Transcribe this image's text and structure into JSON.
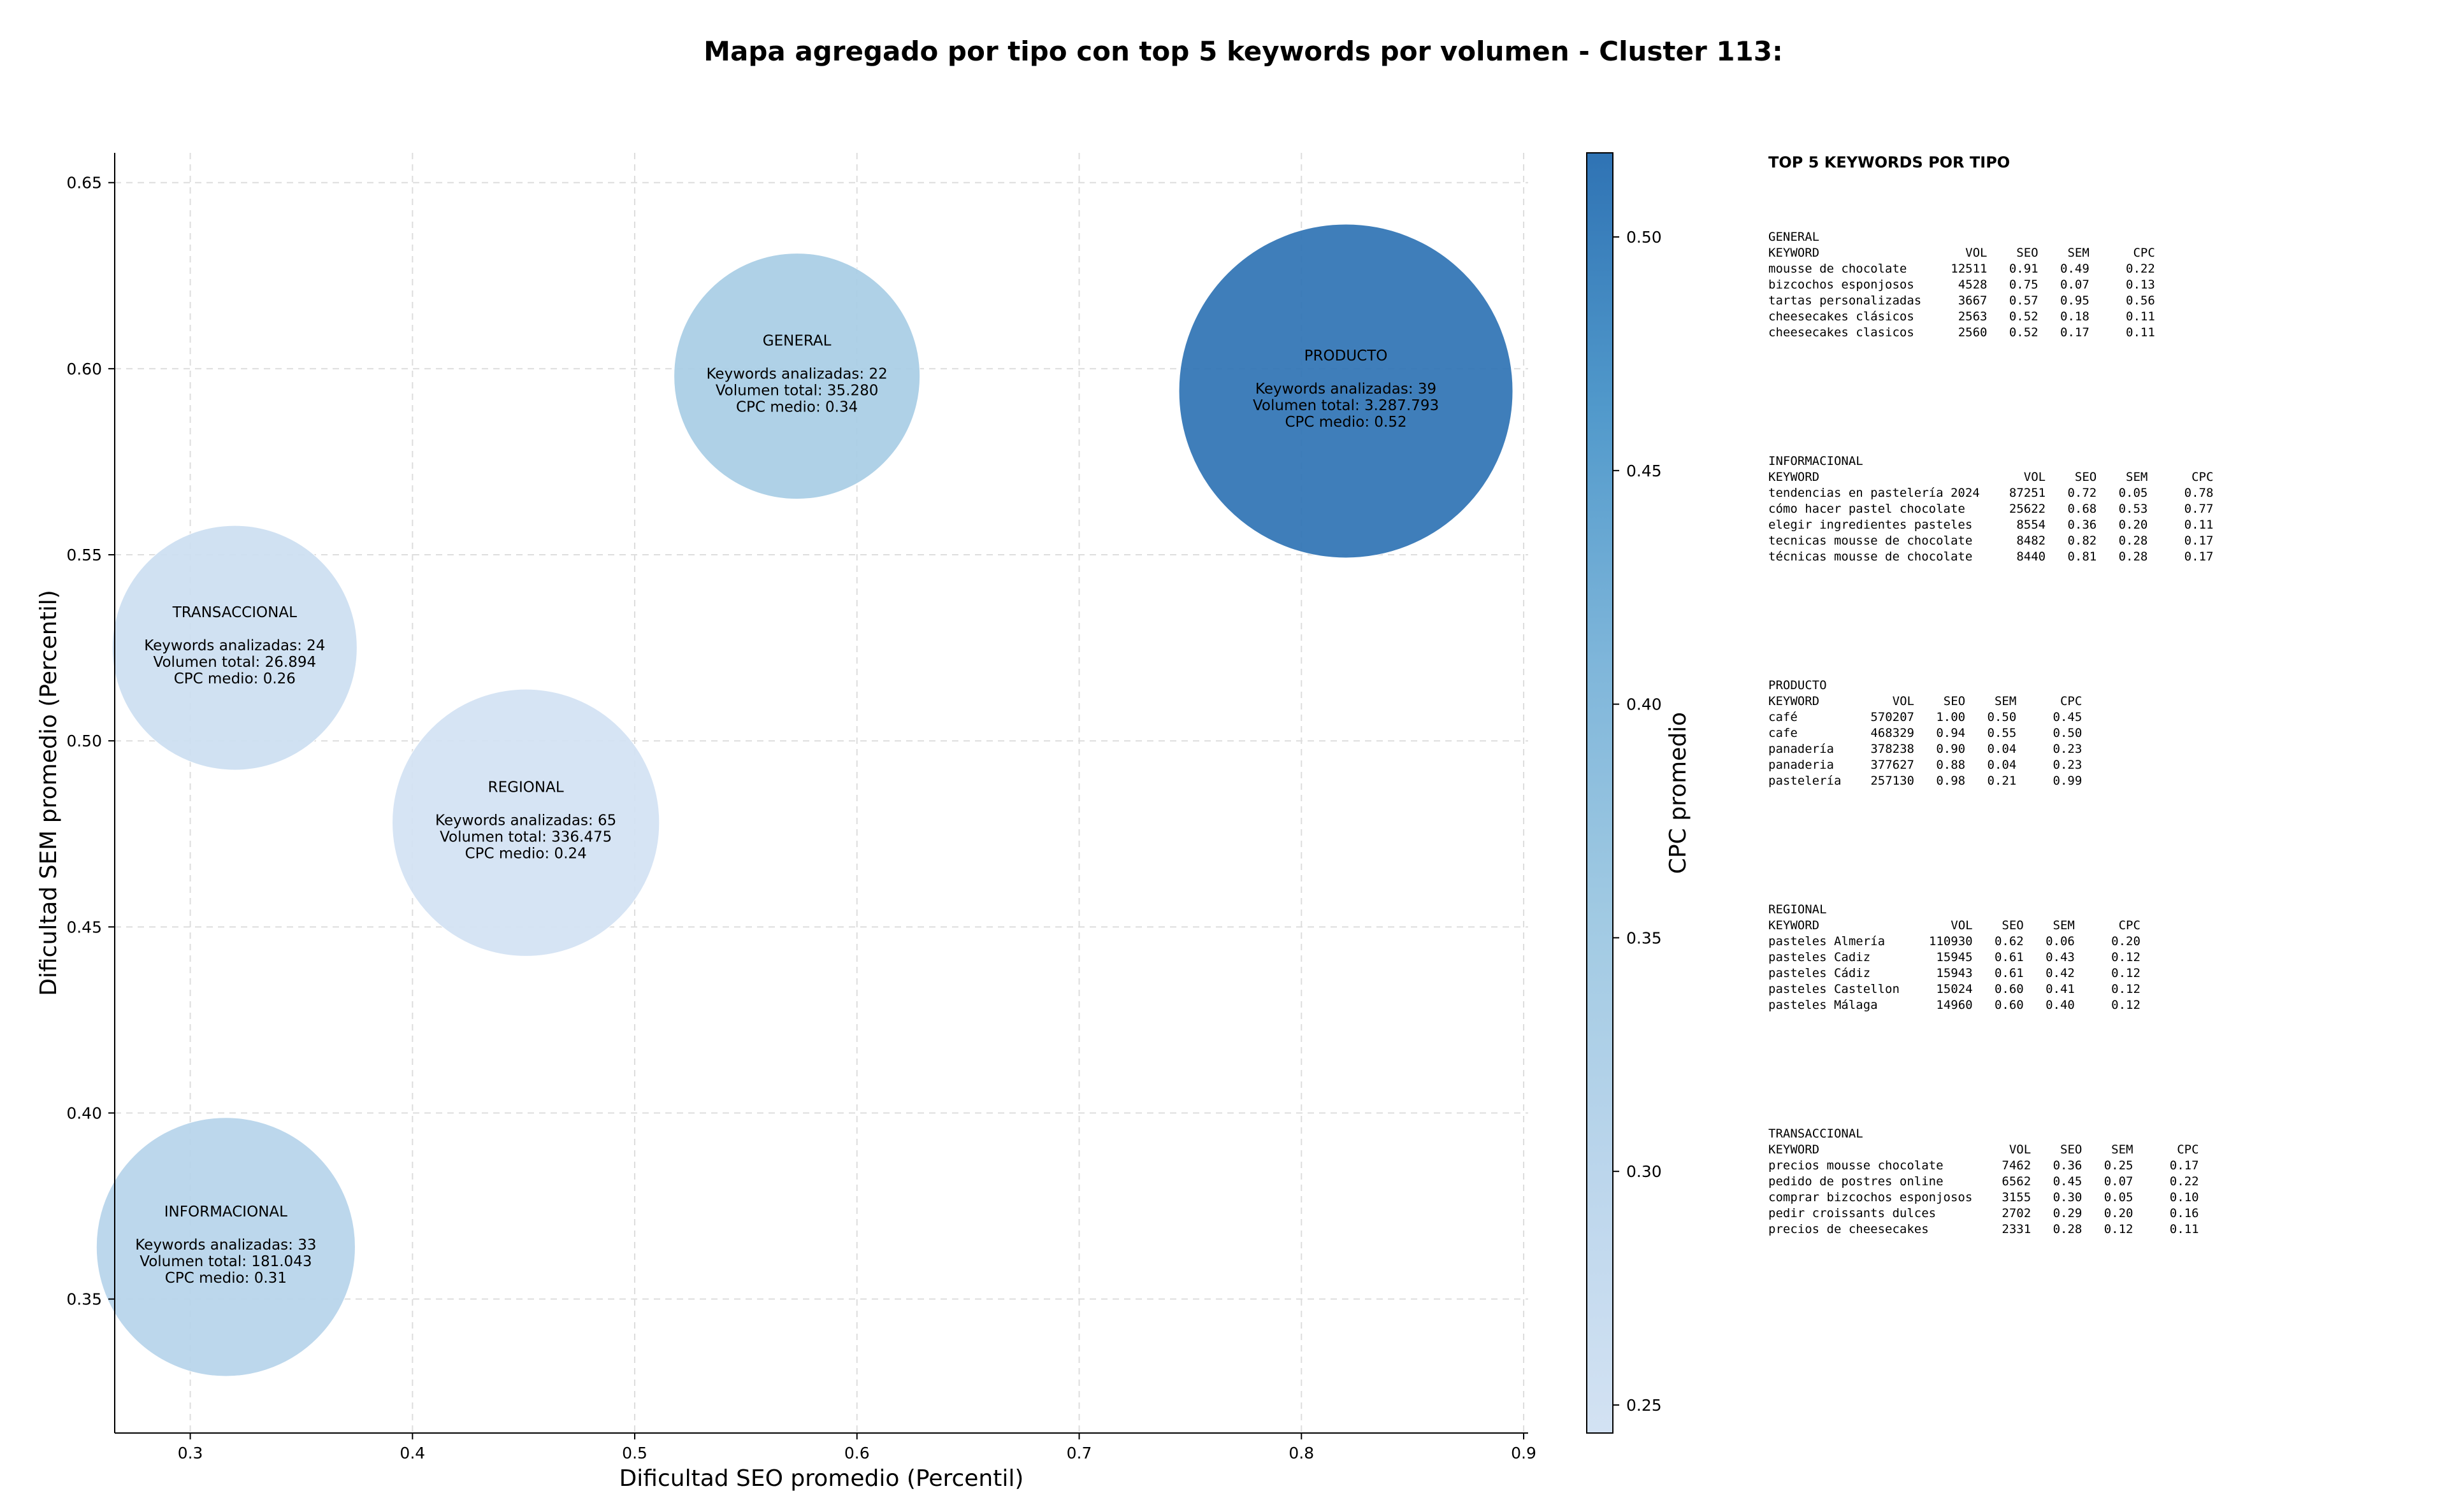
{
  "chart_data": {
    "type": "scatter",
    "title": "Mapa agregado por tipo con top 5 keywords por volumen - Cluster 113:",
    "xlabel": "Dificultad SEO promedio (Percentil)",
    "ylabel": "Dificultad SEM promedio (Percentil)",
    "xlim": [
      0.266,
      0.902
    ],
    "ylim": [
      0.314,
      0.658
    ],
    "xticks": [
      "0.3",
      "0.4",
      "0.5",
      "0.6",
      "0.7",
      "0.8",
      "0.9"
    ],
    "yticks": [
      "0.35",
      "0.40",
      "0.45",
      "0.50",
      "0.55",
      "0.60",
      "0.65"
    ],
    "grid": true,
    "colorbar": {
      "label": "CPC promedio",
      "range": [
        0.244,
        0.518
      ],
      "ticks": [
        "0.25",
        "0.30",
        "0.35",
        "0.40",
        "0.45",
        "0.50"
      ]
    },
    "points": [
      {
        "type_label": "GENERAL",
        "x": 0.573,
        "y": 0.598,
        "size_volume": 35280,
        "cpc": 0.34,
        "line1": "Keywords analizadas: 22",
        "line2": "Volumen total: 35.280",
        "line3": "CPC medio: 0.34"
      },
      {
        "type_label": "PRODUCTO",
        "x": 0.82,
        "y": 0.594,
        "size_volume": 3287793,
        "cpc": 0.52,
        "line1": "Keywords analizadas: 39",
        "line2": "Volumen total: 3.287.793",
        "line3": "CPC medio: 0.52"
      },
      {
        "type_label": "TRANSACCIONAL",
        "x": 0.32,
        "y": 0.525,
        "size_volume": 26894,
        "cpc": 0.26,
        "line1": "Keywords analizadas: 24",
        "line2": "Volumen total: 26.894",
        "line3": "CPC medio: 0.26"
      },
      {
        "type_label": "REGIONAL",
        "x": 0.451,
        "y": 0.478,
        "size_volume": 336475,
        "cpc": 0.24,
        "line1": "Keywords analizadas: 65",
        "line2": "Volumen total: 336.475",
        "line3": "CPC medio: 0.24"
      },
      {
        "type_label": "INFORMACIONAL",
        "x": 0.316,
        "y": 0.364,
        "size_volume": 181043,
        "cpc": 0.31,
        "line1": "Keywords analizadas: 33",
        "line2": "Volumen total: 181.043",
        "line3": "CPC medio: 0.31"
      }
    ]
  },
  "panel": {
    "title": "TOP 5 KEYWORDS POR TIPO",
    "header": {
      "keyword": "KEYWORD",
      "vol": "VOL",
      "seo": "SEO",
      "sem": "SEM",
      "cpc": "CPC"
    },
    "groups": [
      {
        "name": "GENERAL",
        "rows": [
          {
            "keyword": "mousse de chocolate",
            "vol": "12511",
            "seo": "0.91",
            "sem": "0.49",
            "cpc": "0.22"
          },
          {
            "keyword": "bizcochos esponjosos",
            "vol": "4528",
            "seo": "0.75",
            "sem": "0.07",
            "cpc": "0.13"
          },
          {
            "keyword": "tartas personalizadas",
            "vol": "3667",
            "seo": "0.57",
            "sem": "0.95",
            "cpc": "0.56"
          },
          {
            "keyword": "cheesecakes clásicos",
            "vol": "2563",
            "seo": "0.52",
            "sem": "0.18",
            "cpc": "0.11"
          },
          {
            "keyword": "cheesecakes clasicos",
            "vol": "2560",
            "seo": "0.52",
            "sem": "0.17",
            "cpc": "0.11"
          }
        ]
      },
      {
        "name": "INFORMACIONAL",
        "rows": [
          {
            "keyword": "tendencias en pastelería 2024",
            "vol": "87251",
            "seo": "0.72",
            "sem": "0.05",
            "cpc": "0.78"
          },
          {
            "keyword": "cómo hacer pastel chocolate",
            "vol": "25622",
            "seo": "0.68",
            "sem": "0.53",
            "cpc": "0.77"
          },
          {
            "keyword": "elegir ingredientes pasteles",
            "vol": "8554",
            "seo": "0.36",
            "sem": "0.20",
            "cpc": "0.11"
          },
          {
            "keyword": "tecnicas mousse de chocolate",
            "vol": "8482",
            "seo": "0.82",
            "sem": "0.28",
            "cpc": "0.17"
          },
          {
            "keyword": "técnicas mousse de chocolate",
            "vol": "8440",
            "seo": "0.81",
            "sem": "0.28",
            "cpc": "0.17"
          }
        ]
      },
      {
        "name": "PRODUCTO",
        "rows": [
          {
            "keyword": "café",
            "vol": "570207",
            "seo": "1.00",
            "sem": "0.50",
            "cpc": "0.45"
          },
          {
            "keyword": "cafe",
            "vol": "468329",
            "seo": "0.94",
            "sem": "0.55",
            "cpc": "0.50"
          },
          {
            "keyword": "panadería",
            "vol": "378238",
            "seo": "0.90",
            "sem": "0.04",
            "cpc": "0.23"
          },
          {
            "keyword": "panaderia",
            "vol": "377627",
            "seo": "0.88",
            "sem": "0.04",
            "cpc": "0.23"
          },
          {
            "keyword": "pastelería",
            "vol": "257130",
            "seo": "0.98",
            "sem": "0.21",
            "cpc": "0.99"
          }
        ]
      },
      {
        "name": "REGIONAL",
        "rows": [
          {
            "keyword": "pasteles Almería",
            "vol": "110930",
            "seo": "0.62",
            "sem": "0.06",
            "cpc": "0.20"
          },
          {
            "keyword": "pasteles Cadiz",
            "vol": "15945",
            "seo": "0.61",
            "sem": "0.43",
            "cpc": "0.12"
          },
          {
            "keyword": "pasteles Cádiz",
            "vol": "15943",
            "seo": "0.61",
            "sem": "0.42",
            "cpc": "0.12"
          },
          {
            "keyword": "pasteles Castellon",
            "vol": "15024",
            "seo": "0.60",
            "sem": "0.41",
            "cpc": "0.12"
          },
          {
            "keyword": "pasteles Málaga",
            "vol": "14960",
            "seo": "0.60",
            "sem": "0.40",
            "cpc": "0.12"
          }
        ]
      },
      {
        "name": "TRANSACCIONAL",
        "rows": [
          {
            "keyword": "precios mousse chocolate",
            "vol": "7462",
            "seo": "0.36",
            "sem": "0.25",
            "cpc": "0.17"
          },
          {
            "keyword": "pedido de postres online",
            "vol": "6562",
            "seo": "0.45",
            "sem": "0.07",
            "cpc": "0.22"
          },
          {
            "keyword": "comprar bizcochos esponjosos",
            "vol": "3155",
            "seo": "0.30",
            "sem": "0.05",
            "cpc": "0.10"
          },
          {
            "keyword": "pedir croissants dulces",
            "vol": "2702",
            "seo": "0.29",
            "sem": "0.20",
            "cpc": "0.16"
          },
          {
            "keyword": "precios de cheesecakes",
            "vol": "2331",
            "seo": "0.28",
            "sem": "0.12",
            "cpc": "0.11"
          }
        ]
      }
    ]
  }
}
